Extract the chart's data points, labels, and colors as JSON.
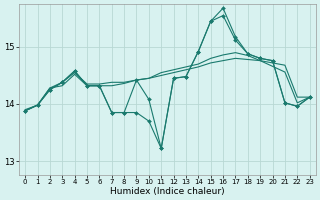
{
  "title": "",
  "xlabel": "Humidex (Indice chaleur)",
  "bg_color": "#d8f2f0",
  "grid_color": "#b8d8d4",
  "line_color": "#1a7a6e",
  "xlim": [
    -0.5,
    23.5
  ],
  "ylim": [
    12.75,
    15.75
  ],
  "yticks": [
    13,
    14,
    15
  ],
  "xtick_labels": [
    "0",
    "1",
    "2",
    "3",
    "4",
    "5",
    "6",
    "7",
    "8",
    "9",
    "10",
    "11",
    "12",
    "13",
    "14",
    "15",
    "16",
    "17",
    "18",
    "19",
    "20",
    "21",
    "22",
    "23"
  ],
  "series1": [
    13.9,
    13.98,
    14.28,
    14.38,
    14.55,
    14.35,
    14.35,
    14.38,
    14.38,
    14.42,
    14.45,
    14.5,
    14.55,
    14.6,
    14.65,
    14.72,
    14.76,
    14.8,
    14.78,
    14.76,
    14.72,
    14.68,
    14.12,
    14.12
  ],
  "series2": [
    13.88,
    13.98,
    14.28,
    14.32,
    14.52,
    14.32,
    14.32,
    14.32,
    14.36,
    14.42,
    14.45,
    14.55,
    14.6,
    14.65,
    14.7,
    14.8,
    14.86,
    14.9,
    14.85,
    14.76,
    14.66,
    14.56,
    14.02,
    14.12
  ],
  "series3": [
    13.88,
    13.98,
    14.25,
    14.38,
    14.58,
    14.32,
    14.32,
    13.85,
    13.85,
    13.85,
    13.7,
    13.22,
    14.45,
    14.48,
    14.92,
    15.45,
    15.68,
    15.18,
    14.88,
    14.8,
    14.76,
    14.02,
    13.96,
    14.12
  ],
  "series4": [
    13.88,
    13.98,
    14.25,
    14.38,
    14.58,
    14.32,
    14.32,
    13.85,
    13.85,
    14.42,
    14.08,
    13.22,
    14.45,
    14.48,
    14.92,
    15.45,
    15.55,
    15.12,
    14.88,
    14.8,
    14.76,
    14.02,
    13.96,
    14.12
  ]
}
